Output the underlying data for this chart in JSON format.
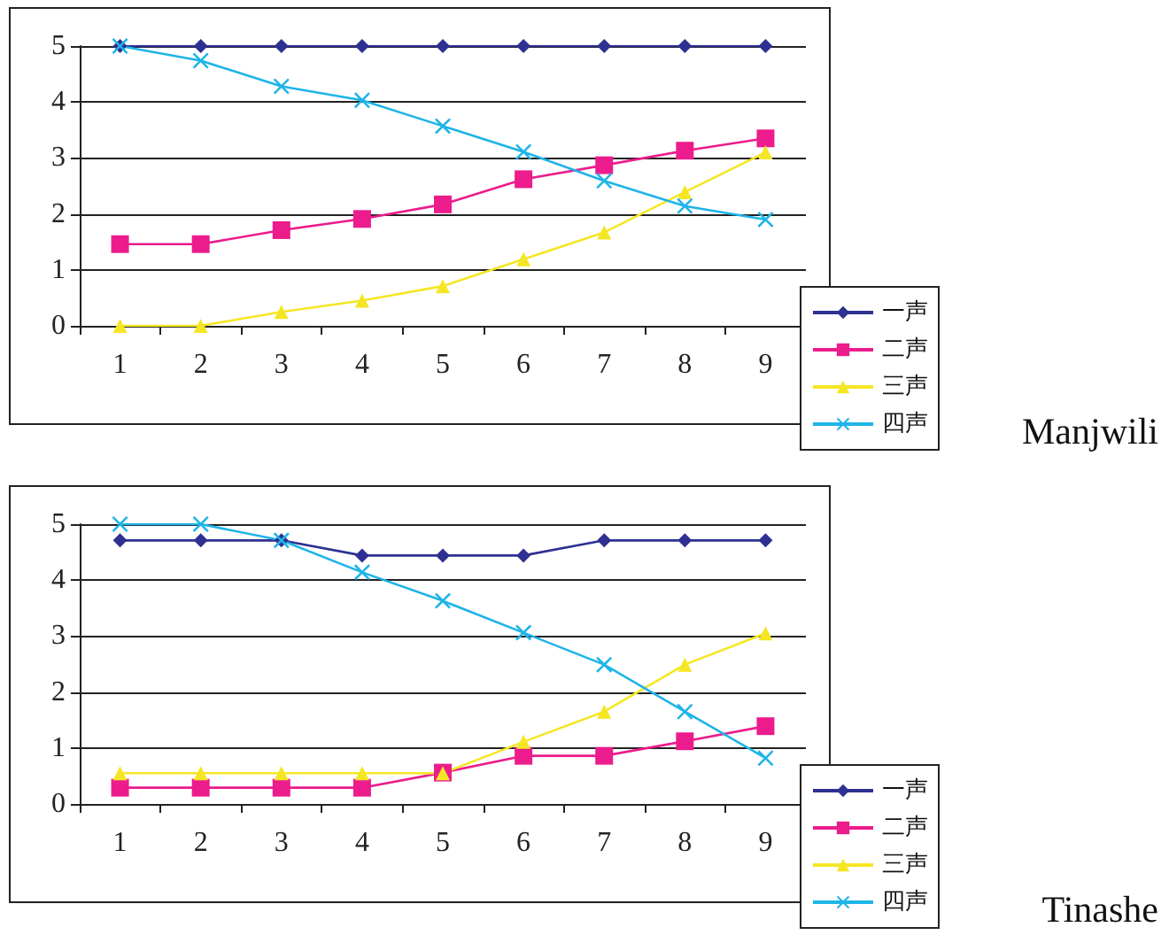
{
  "chart_data": [
    {
      "type": "line",
      "annotations": [
        "Manjwili"
      ],
      "categories": [
        "1",
        "2",
        "3",
        "4",
        "5",
        "6",
        "7",
        "8",
        "9"
      ],
      "ylim": [
        0,
        5
      ],
      "yticks": [
        0,
        1,
        2,
        3,
        4,
        5
      ],
      "grid": "y",
      "legend": "bottom right",
      "series": [
        {
          "name": "一声",
          "color": "#2e3192",
          "marker": "diamond",
          "values": [
            5,
            5,
            5,
            5,
            5,
            5,
            5,
            5,
            5
          ]
        },
        {
          "name": "二声",
          "color": "#ec1c8c",
          "marker": "square",
          "values": [
            1.46,
            1.46,
            1.71,
            1.91,
            2.17,
            2.62,
            2.87,
            3.13,
            3.35
          ]
        },
        {
          "name": "三声",
          "color": "#f5e625",
          "marker": "triangle",
          "values": [
            0,
            0,
            0.25,
            0.45,
            0.71,
            1.19,
            1.67,
            2.39,
            3.1
          ]
        },
        {
          "name": "四声",
          "color": "#1eb4e8",
          "marker": "cross",
          "values": [
            5,
            4.74,
            4.28,
            4.03,
            3.57,
            3.11,
            2.59,
            2.14,
            1.9
          ]
        }
      ]
    },
    {
      "type": "line",
      "annotations": [
        "Tinashe"
      ],
      "categories": [
        "1",
        "2",
        "3",
        "4",
        "5",
        "6",
        "7",
        "8",
        "9"
      ],
      "ylim": [
        0,
        5
      ],
      "yticks": [
        0,
        1,
        2,
        3,
        4,
        5
      ],
      "grid": "y",
      "legend": "bottom right",
      "series": [
        {
          "name": "一声",
          "color": "#2e3192",
          "marker": "diamond",
          "values": [
            4.71,
            4.71,
            4.71,
            4.44,
            4.44,
            4.44,
            4.71,
            4.71,
            4.71
          ]
        },
        {
          "name": "二声",
          "color": "#ec1c8c",
          "marker": "square",
          "values": [
            0.29,
            0.29,
            0.29,
            0.29,
            0.56,
            0.86,
            0.86,
            1.12,
            1.39
          ]
        },
        {
          "name": "三声",
          "color": "#f5e625",
          "marker": "triangle",
          "values": [
            0.55,
            0.55,
            0.55,
            0.55,
            0.55,
            1.11,
            1.65,
            2.49,
            3.05
          ]
        },
        {
          "name": "四声",
          "color": "#1eb4e8",
          "marker": "cross",
          "values": [
            5,
            5,
            4.71,
            4.14,
            3.63,
            3.06,
            2.49,
            1.65,
            0.82
          ]
        }
      ]
    }
  ]
}
